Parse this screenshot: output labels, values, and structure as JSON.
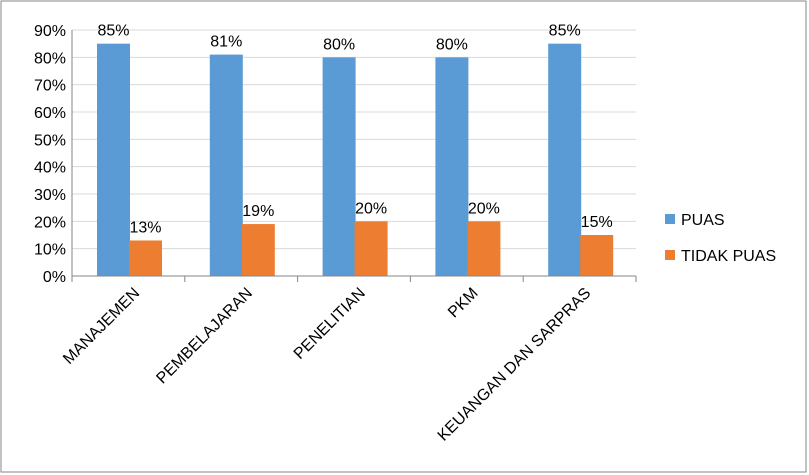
{
  "chart_data": {
    "type": "bar",
    "title": "",
    "xlabel": "",
    "ylabel": "",
    "categories": [
      "MANAJEMEN",
      "PEMBELAJARAN",
      "PENELITIAN",
      "PKM",
      "KEUANGAN DAN SARPRAS"
    ],
    "series": [
      {
        "name": "PUAS",
        "values": [
          85,
          81,
          80,
          80,
          85
        ],
        "labels": [
          "85%",
          "81%",
          "80%",
          "80%",
          "85%"
        ],
        "color": "#5B9BD5"
      },
      {
        "name": "TIDAK PUAS",
        "values": [
          13,
          19,
          20,
          20,
          15
        ],
        "labels": [
          "13%",
          "19%",
          "20%",
          "20%",
          "15%"
        ],
        "color": "#ED7D31"
      }
    ],
    "ylim": [
      0,
      90
    ],
    "yticks": [
      0,
      10,
      20,
      30,
      40,
      50,
      60,
      70,
      80,
      90
    ],
    "ytick_labels": [
      "0%",
      "10%",
      "20%",
      "30%",
      "40%",
      "50%",
      "60%",
      "70%",
      "80%",
      "90%"
    ],
    "grid": true,
    "legend_position": "right",
    "grid_color": "#D9D9D9",
    "axis_color": "#868686",
    "border_color": "#868686"
  }
}
